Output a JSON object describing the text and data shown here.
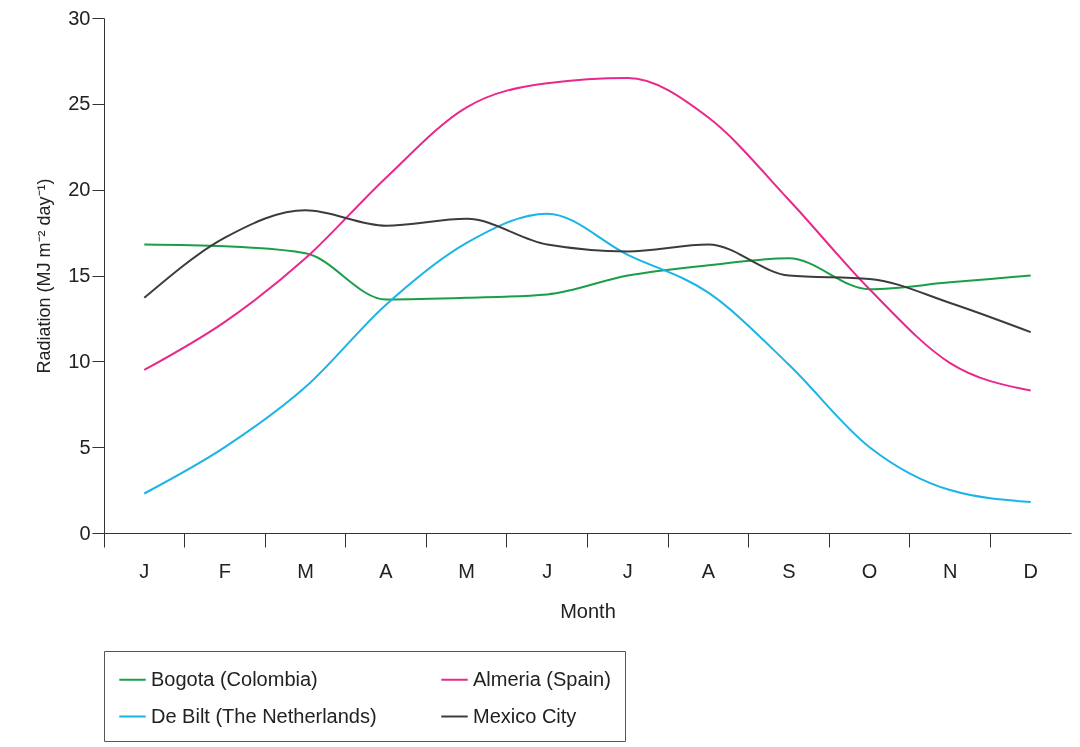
{
  "chart_data": {
    "type": "line",
    "xlabel": "Month",
    "ylabel": "Radiation (MJ m⁻² day⁻¹)",
    "categories": [
      "J",
      "F",
      "M",
      "A",
      "M",
      "J",
      "J",
      "A",
      "S",
      "O",
      "N",
      "D"
    ],
    "ylim": [
      0,
      30
    ],
    "yticks": [
      0,
      5,
      10,
      15,
      20,
      25,
      30
    ],
    "grid": false,
    "legend": "bottom",
    "series": [
      {
        "name": "Bogota (Colombia)",
        "color": "#1a9e4a",
        "values": [
          16.8,
          16.7,
          16.3,
          13.6,
          13.7,
          13.9,
          15.0,
          15.6,
          16.0,
          14.2,
          14.6,
          15.0
        ]
      },
      {
        "name": "Almeria (Spain)",
        "color": "#e8288a",
        "values": [
          9.5,
          12.3,
          16.0,
          20.7,
          24.8,
          26.2,
          26.5,
          24.2,
          19.4,
          14.2,
          9.9,
          8.3
        ]
      },
      {
        "name": "De Bilt (The Netherlands)",
        "color": "#1ab4e8",
        "values": [
          2.3,
          5.0,
          8.5,
          13.3,
          16.9,
          18.6,
          16.2,
          14.0,
          9.8,
          5.0,
          2.5,
          1.8
        ]
      },
      {
        "name": "Mexico City",
        "color": "#3c3c3c",
        "values": [
          13.7,
          17.2,
          18.8,
          17.9,
          18.3,
          16.8,
          16.4,
          16.8,
          15.0,
          14.8,
          13.4,
          11.7
        ]
      }
    ]
  }
}
